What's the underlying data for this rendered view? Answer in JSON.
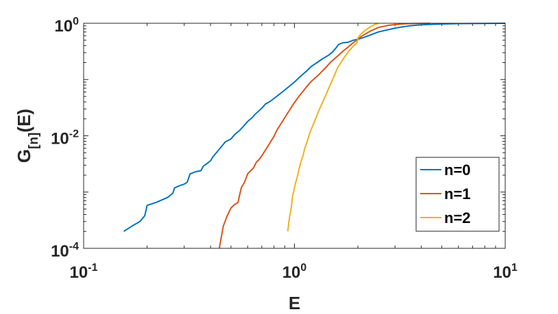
{
  "chart_data": {
    "type": "line",
    "xlabel": "E",
    "ylabel": "G_{[n]}(E)",
    "x_scale": "log",
    "y_scale": "log",
    "xlim": [
      0.1,
      10
    ],
    "ylim": [
      0.0001,
      1
    ],
    "x_ticks": [
      {
        "base": "10",
        "exp": "-1",
        "value": 0.1
      },
      {
        "base": "10",
        "exp": "0",
        "value": 1
      },
      {
        "base": "10",
        "exp": "1",
        "value": 10
      }
    ],
    "y_ticks": [
      {
        "base": "10",
        "exp": "-4",
        "value": 0.0001
      },
      {
        "base": "10",
        "exp": "-2",
        "value": 0.01
      },
      {
        "base": "10",
        "exp": "0",
        "value": 1
      }
    ],
    "grid": false,
    "legend_position": "bottom-right",
    "series": [
      {
        "name": "n=0",
        "color": "#0072BD",
        "points": [
          [
            0.155,
            0.0002
          ],
          [
            0.17,
            0.00025
          ],
          [
            0.185,
            0.0003
          ],
          [
            0.195,
            0.00038
          ],
          [
            0.2,
            0.00058
          ],
          [
            0.22,
            0.00065
          ],
          [
            0.25,
            0.0008
          ],
          [
            0.265,
            0.00095
          ],
          [
            0.27,
            0.00118
          ],
          [
            0.285,
            0.0013
          ],
          [
            0.3,
            0.00138
          ],
          [
            0.31,
            0.0015
          ],
          [
            0.32,
            0.0021
          ],
          [
            0.33,
            0.0022
          ],
          [
            0.34,
            0.0023
          ],
          [
            0.36,
            0.0024
          ],
          [
            0.37,
            0.0029
          ],
          [
            0.38,
            0.0031
          ],
          [
            0.4,
            0.0036
          ],
          [
            0.41,
            0.0042
          ],
          [
            0.43,
            0.0052
          ],
          [
            0.45,
            0.0064
          ],
          [
            0.47,
            0.0078
          ],
          [
            0.5,
            0.0088
          ],
          [
            0.52,
            0.0105
          ],
          [
            0.55,
            0.0125
          ],
          [
            0.58,
            0.0155
          ],
          [
            0.6,
            0.018
          ],
          [
            0.63,
            0.021
          ],
          [
            0.65,
            0.024
          ],
          [
            0.68,
            0.028
          ],
          [
            0.7,
            0.031
          ],
          [
            0.73,
            0.037
          ],
          [
            0.76,
            0.04
          ],
          [
            0.8,
            0.046
          ],
          [
            0.85,
            0.055
          ],
          [
            0.9,
            0.065
          ],
          [
            0.95,
            0.077
          ],
          [
            1.0,
            0.09
          ],
          [
            1.05,
            0.107
          ],
          [
            1.1,
            0.125
          ],
          [
            1.15,
            0.145
          ],
          [
            1.2,
            0.17
          ],
          [
            1.28,
            0.2
          ],
          [
            1.35,
            0.23
          ],
          [
            1.45,
            0.27
          ],
          [
            1.52,
            0.31
          ],
          [
            1.58,
            0.37
          ],
          [
            1.62,
            0.42
          ],
          [
            1.7,
            0.45
          ],
          [
            1.8,
            0.46
          ],
          [
            1.9,
            0.5
          ],
          [
            2.0,
            0.52
          ],
          [
            2.1,
            0.55
          ],
          [
            2.3,
            0.62
          ],
          [
            2.5,
            0.7
          ],
          [
            3.0,
            0.82
          ],
          [
            3.5,
            0.9
          ],
          [
            4.0,
            0.94
          ],
          [
            5.0,
            0.97
          ],
          [
            6.0,
            0.985
          ],
          [
            8.0,
            0.995
          ],
          [
            10.0,
            1.0
          ]
        ]
      },
      {
        "name": "n=1",
        "color": "#D95319",
        "points": [
          [
            0.44,
            0.0001
          ],
          [
            0.45,
            0.00016
          ],
          [
            0.46,
            0.00025
          ],
          [
            0.48,
            0.00038
          ],
          [
            0.5,
            0.00052
          ],
          [
            0.52,
            0.0006
          ],
          [
            0.54,
            0.00065
          ],
          [
            0.55,
            0.0009
          ],
          [
            0.56,
            0.0012
          ],
          [
            0.58,
            0.0015
          ],
          [
            0.6,
            0.0021
          ],
          [
            0.62,
            0.0024
          ],
          [
            0.64,
            0.0027
          ],
          [
            0.66,
            0.0034
          ],
          [
            0.68,
            0.0038
          ],
          [
            0.7,
            0.0044
          ],
          [
            0.72,
            0.0052
          ],
          [
            0.75,
            0.0066
          ],
          [
            0.78,
            0.0084
          ],
          [
            0.8,
            0.0098
          ],
          [
            0.83,
            0.013
          ],
          [
            0.86,
            0.016
          ],
          [
            0.9,
            0.021
          ],
          [
            0.95,
            0.029
          ],
          [
            1.0,
            0.039
          ],
          [
            1.05,
            0.05
          ],
          [
            1.1,
            0.062
          ],
          [
            1.15,
            0.077
          ],
          [
            1.2,
            0.092
          ],
          [
            1.3,
            0.12
          ],
          [
            1.4,
            0.16
          ],
          [
            1.5,
            0.21
          ],
          [
            1.6,
            0.26
          ],
          [
            1.7,
            0.32
          ],
          [
            1.8,
            0.38
          ],
          [
            1.9,
            0.45
          ],
          [
            2.0,
            0.52
          ],
          [
            2.1,
            0.6
          ],
          [
            2.3,
            0.73
          ],
          [
            2.5,
            0.84
          ],
          [
            2.8,
            0.92
          ],
          [
            3.2,
            0.97
          ],
          [
            3.6,
            0.99
          ],
          [
            4.4,
            1.0
          ]
        ]
      },
      {
        "name": "n=2",
        "color": "#EDB120",
        "points": [
          [
            0.93,
            0.0002
          ],
          [
            0.94,
            0.00028
          ],
          [
            0.95,
            0.00038
          ],
          [
            0.96,
            0.00045
          ],
          [
            0.97,
            0.0006
          ],
          [
            0.98,
            0.00085
          ],
          [
            0.99,
            0.001
          ],
          [
            1.01,
            0.0014
          ],
          [
            1.03,
            0.0018
          ],
          [
            1.05,
            0.0025
          ],
          [
            1.07,
            0.0033
          ],
          [
            1.1,
            0.0045
          ],
          [
            1.12,
            0.006
          ],
          [
            1.15,
            0.008
          ],
          [
            1.18,
            0.011
          ],
          [
            1.22,
            0.015
          ],
          [
            1.26,
            0.02
          ],
          [
            1.3,
            0.027
          ],
          [
            1.35,
            0.037
          ],
          [
            1.4,
            0.05
          ],
          [
            1.45,
            0.068
          ],
          [
            1.5,
            0.09
          ],
          [
            1.55,
            0.12
          ],
          [
            1.6,
            0.16
          ],
          [
            1.7,
            0.23
          ],
          [
            1.8,
            0.31
          ],
          [
            1.9,
            0.39
          ],
          [
            1.98,
            0.45
          ],
          [
            2.0,
            0.55
          ],
          [
            2.05,
            0.62
          ],
          [
            2.1,
            0.68
          ],
          [
            2.2,
            0.78
          ],
          [
            2.3,
            0.87
          ],
          [
            2.4,
            0.95
          ],
          [
            2.5,
            1.0
          ]
        ]
      }
    ]
  }
}
